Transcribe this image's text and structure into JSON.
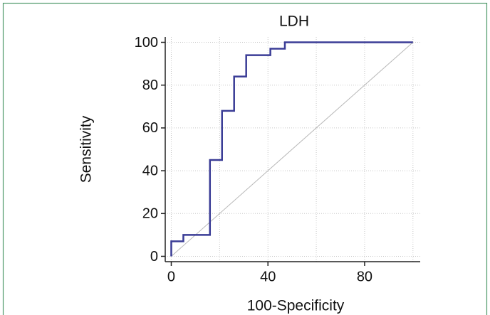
{
  "chart_data": {
    "type": "line",
    "title": "LDH",
    "x_label": "100-Specificity",
    "y_label": "Sensitivity",
    "series": [
      {
        "color": "#b8b8b8",
        "x": [
          0,
          100
        ],
        "values": [
          0,
          100
        ]
      },
      {
        "color": "#3a3c96",
        "x": [
          0,
          0,
          5,
          5,
          16,
          16,
          21,
          21,
          26,
          26,
          31,
          31,
          41,
          41,
          47,
          47,
          100
        ],
        "values": [
          0,
          7,
          7,
          10,
          10,
          45,
          45,
          68,
          68,
          84,
          84,
          94,
          94,
          97,
          97,
          100,
          100
        ]
      }
    ],
    "xlim": [
      -2.5,
      103
    ],
    "ylim": [
      -2.5,
      102.5
    ],
    "xticks": [
      0,
      40,
      80
    ],
    "yticks": [
      0,
      20,
      40,
      60,
      80,
      100
    ],
    "xgrid": [
      0,
      20,
      40,
      60,
      80,
      100
    ],
    "grid": true
  }
}
